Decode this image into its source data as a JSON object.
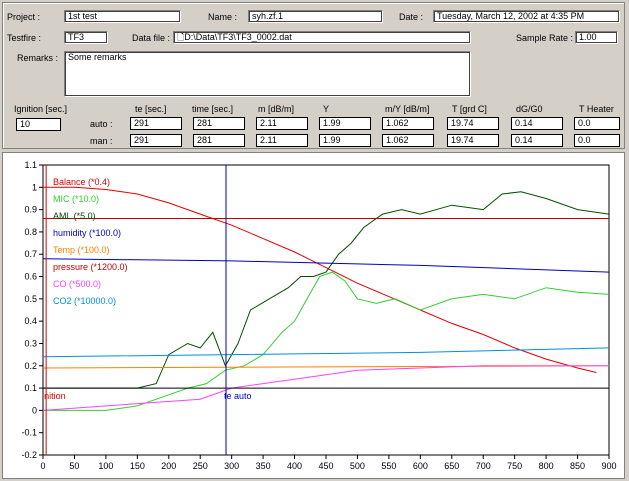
{
  "header": {
    "project_label": "Project :",
    "project_value": "1st test",
    "name_label": "Name :",
    "name_value": "syh.zf.1",
    "date_label": "Date :",
    "date_value": "Tuesday, March 12, 2002 at 4:35 PM",
    "testfire_label": "Testfire :",
    "testfire_value": "TF3",
    "datafile_label": "Data file :",
    "datafile_value": "D:\\Data\\TF3\\TF3_0002.dat",
    "sample_rate_label": "Sample Rate :",
    "sample_rate_value": "1.00",
    "remarks_label": "Remarks :",
    "remarks_value": "Some remarks"
  },
  "params": {
    "ignition_label": "Ignition [sec.]",
    "ignition_value": "10",
    "auto_label": "auto :",
    "man_label": "man :",
    "columns": [
      "te [sec.]",
      "time [sec.]",
      "m [dB/m]",
      "Y",
      "m/Y [dB/m]",
      "T [grd C]",
      "dG/G0",
      "T Heater"
    ],
    "auto": [
      "291",
      "281",
      "2.11",
      "1.99",
      "1.062",
      "19.74",
      "0.14",
      "0.0"
    ],
    "man": [
      "291",
      "281",
      "2.11",
      "1.99",
      "1.062",
      "19.74",
      "0.14",
      "0.0"
    ]
  },
  "chart_data": {
    "type": "line",
    "xlim": [
      0,
      900
    ],
    "ylim": [
      -0.2,
      1.1
    ],
    "xticks": [
      0,
      50,
      100,
      150,
      200,
      250,
      300,
      350,
      400,
      450,
      500,
      550,
      600,
      650,
      700,
      750,
      800,
      850,
      900
    ],
    "yticks": [
      -0.2,
      -0.1,
      0,
      0.1,
      0.2,
      0.3,
      0.4,
      0.5,
      0.6,
      0.7,
      0.8,
      0.9,
      1,
      1.1
    ],
    "grid": false,
    "legend": [
      {
        "label": "Balance (*0.4)",
        "color": "#e00000"
      },
      {
        "label": "MIC      (*10.0)",
        "color": "#30d030"
      },
      {
        "label": "AML      (*5.0)",
        "color": "#005000"
      },
      {
        "label": "humidity  (*100.0)",
        "color": "#0000c0"
      },
      {
        "label": "Temp     (*100.0)",
        "color": "#ff8000"
      },
      {
        "label": "pressure  (*1200.0)",
        "color": "#c00000"
      },
      {
        "label": "CO       (*500.0)",
        "color": "#ff40ff"
      },
      {
        "label": "CO2      (*10000.0)",
        "color": "#0090e0"
      }
    ],
    "markers": [
      {
        "label": "nition",
        "x": 5,
        "color": "#e00000"
      },
      {
        "label": "te auto",
        "x": 291,
        "color": "#0000c0"
      }
    ],
    "series": [
      {
        "name": "Balance (*0.4)",
        "color": "#e00000",
        "x": [
          0,
          50,
          100,
          150,
          200,
          250,
          300,
          350,
          400,
          450,
          500,
          550,
          600,
          650,
          700,
          750,
          800,
          850,
          880
        ],
        "y": [
          1.0,
          1.0,
          0.99,
          0.97,
          0.93,
          0.88,
          0.83,
          0.77,
          0.71,
          0.64,
          0.57,
          0.51,
          0.45,
          0.39,
          0.34,
          0.28,
          0.23,
          0.19,
          0.17
        ]
      },
      {
        "name": "MIC      (*10.0)",
        "color": "#30d030",
        "x": [
          0,
          100,
          150,
          200,
          230,
          260,
          290,
          320,
          350,
          380,
          400,
          420,
          440,
          460,
          480,
          500,
          530,
          560,
          600,
          650,
          700,
          750,
          800,
          850,
          900
        ],
        "y": [
          0.0,
          0.0,
          0.02,
          0.07,
          0.1,
          0.12,
          0.18,
          0.2,
          0.25,
          0.35,
          0.4,
          0.5,
          0.6,
          0.62,
          0.58,
          0.5,
          0.48,
          0.5,
          0.45,
          0.5,
          0.52,
          0.5,
          0.55,
          0.53,
          0.52
        ]
      },
      {
        "name": "AML      (*5.0)",
        "color": "#005000",
        "x": [
          0,
          150,
          180,
          200,
          230,
          250,
          270,
          290,
          310,
          330,
          360,
          390,
          410,
          430,
          450,
          470,
          490,
          510,
          540,
          570,
          600,
          650,
          700,
          730,
          760,
          800,
          850,
          900
        ],
        "y": [
          0.1,
          0.1,
          0.12,
          0.25,
          0.3,
          0.28,
          0.35,
          0.2,
          0.3,
          0.45,
          0.5,
          0.55,
          0.6,
          0.6,
          0.62,
          0.7,
          0.75,
          0.82,
          0.88,
          0.9,
          0.88,
          0.92,
          0.9,
          0.97,
          0.98,
          0.95,
          0.9,
          0.88
        ]
      },
      {
        "name": "humidity  (*100.0)",
        "color": "#0000c0",
        "x": [
          0,
          300,
          600,
          900
        ],
        "y": [
          0.68,
          0.67,
          0.65,
          0.62
        ]
      },
      {
        "name": "Temp     (*100.0)",
        "color": "#ff8000",
        "x": [
          0,
          900
        ],
        "y": [
          0.19,
          0.2
        ]
      },
      {
        "name": "pressure  (*1200.0)",
        "color": "#c00000",
        "x": [
          0,
          900
        ],
        "y": [
          0.86,
          0.86
        ]
      },
      {
        "name": "CO       (*500.0)",
        "color": "#ff40ff",
        "x": [
          0,
          250,
          300,
          350,
          400,
          450,
          500,
          600,
          700,
          800,
          900
        ],
        "y": [
          0.0,
          0.05,
          0.1,
          0.12,
          0.14,
          0.16,
          0.18,
          0.19,
          0.2,
          0.2,
          0.2
        ]
      },
      {
        "name": "CO2      (*10000.0)",
        "color": "#0090e0",
        "x": [
          0,
          300,
          600,
          900
        ],
        "y": [
          0.24,
          0.25,
          0.26,
          0.28
        ]
      },
      {
        "name": "baseline",
        "color": "#000000",
        "x": [
          0,
          900
        ],
        "y": [
          0.1,
          0.1
        ]
      }
    ]
  }
}
